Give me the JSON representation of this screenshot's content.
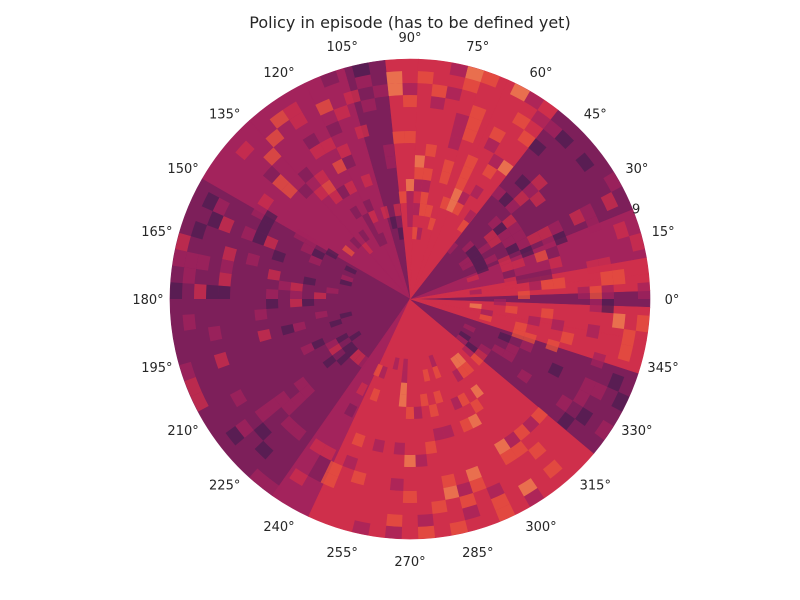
{
  "chart_data": {
    "type": "heatmap",
    "projection": "polar",
    "title": "Policy in episode (has to be defined yet)",
    "angular_ticks": [
      "0°",
      "15°",
      "30°",
      "45°",
      "60°",
      "75°",
      "90°",
      "105°",
      "120°",
      "135°",
      "150°",
      "165°",
      "180°",
      "195°",
      "210°",
      "225°",
      "240°",
      "255°",
      "270°",
      "285°",
      "300°",
      "315°",
      "330°",
      "345°"
    ],
    "angular_tick_degrees": [
      0,
      15,
      30,
      45,
      60,
      75,
      90,
      105,
      120,
      135,
      150,
      165,
      180,
      195,
      210,
      225,
      240,
      255,
      270,
      285,
      300,
      315,
      330,
      345
    ],
    "radial_tick_labels": [
      "9"
    ],
    "radial_tick_angle_deg": 22.5,
    "grid": false,
    "colormap": "rocket",
    "palette": [
      "#170f2e",
      "#4e1d52",
      "#7d1f5a",
      "#a3235c",
      "#cf2f4b",
      "#e8533c",
      "#f2864f",
      "#f6b88a"
    ],
    "sectors": [
      {
        "start_deg": -2,
        "end_deg": 2,
        "level": 2.0
      },
      {
        "start_deg": 2,
        "end_deg": 6,
        "level": 4.2
      },
      {
        "start_deg": 6,
        "end_deg": 10,
        "level": 3.6
      },
      {
        "start_deg": 10,
        "end_deg": 22,
        "level": 2.8
      },
      {
        "start_deg": 22,
        "end_deg": 52,
        "level": 2.0
      },
      {
        "start_deg": 52,
        "end_deg": 66,
        "level": 3.6
      },
      {
        "start_deg": 66,
        "end_deg": 72,
        "level": 4.0
      },
      {
        "start_deg": 72,
        "end_deg": 88,
        "level": 4.2
      },
      {
        "start_deg": 88,
        "end_deg": 96,
        "level": 3.7
      },
      {
        "start_deg": 96,
        "end_deg": 106,
        "level": 2.2
      },
      {
        "start_deg": 106,
        "end_deg": 116,
        "level": 2.8
      },
      {
        "start_deg": 116,
        "end_deg": 132,
        "level": 3.4
      },
      {
        "start_deg": 132,
        "end_deg": 150,
        "level": 2.6
      },
      {
        "start_deg": 150,
        "end_deg": 235,
        "level": 2.2
      },
      {
        "start_deg": 235,
        "end_deg": 245,
        "level": 3.2
      },
      {
        "start_deg": 245,
        "end_deg": 320,
        "level": 4.1
      },
      {
        "start_deg": 320,
        "end_deg": 342,
        "level": 2.4
      },
      {
        "start_deg": 342,
        "end_deg": 350,
        "level": 3.5
      },
      {
        "start_deg": 350,
        "end_deg": 358,
        "level": 4.3
      }
    ]
  }
}
